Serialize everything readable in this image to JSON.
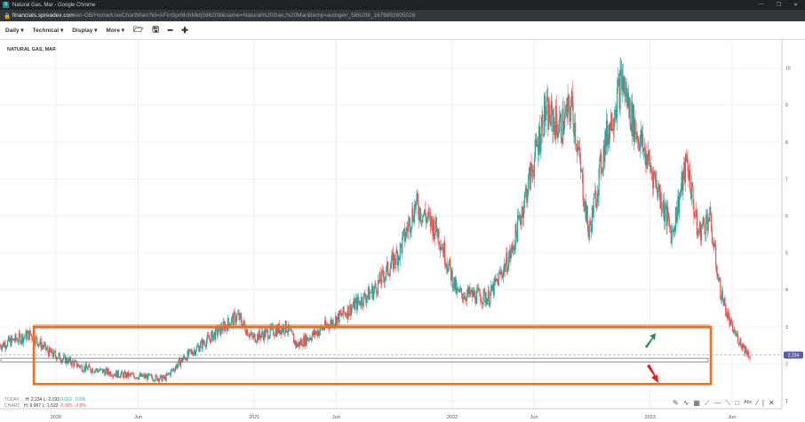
{
  "window": {
    "title": "Natural Gas, Mar - Google Chrome",
    "url_host": "financials.spreadex.com",
    "url_path": "/en-GB/Home/LiveChartMain?id=XFinSprMchMkt|586208&name=Natural%20Gas,%20Mar&temp=autogen_586208_1676882605028"
  },
  "toolbar": {
    "items": [
      "Daily",
      "Technical",
      "Display",
      "More"
    ],
    "icons": [
      "folder-open-icon",
      "save-icon",
      "zoom-out-icon",
      "zoom-in-icon"
    ]
  },
  "stats": {
    "today_label": "TODAY:",
    "today_h": "H: 2.234",
    "today_l": "L: 2.193",
    "today_chg": "0.012",
    "today_pct": "0.5%",
    "chart_label": "CHART:",
    "chart_h": "H: 9.967",
    "chart_l": "L: 1.522",
    "chart_chg": "-0.065",
    "chart_pct": "-2.8%"
  },
  "colors": {
    "up": "#26a69a",
    "down": "#ef5350",
    "highlight": "#ff6a13",
    "price_tag": "#5b5ea6"
  },
  "chart_data": {
    "type": "candlestick",
    "title": "NATURAL GAS, MAR",
    "ylim": [
      0.8,
      10.6
    ],
    "yticks": [
      1,
      2,
      3,
      4,
      5,
      6,
      7,
      8,
      9,
      10
    ],
    "xticks": [
      {
        "date": "2020-01",
        "label": "2020"
      },
      {
        "date": "2020-06",
        "label": "Jun"
      },
      {
        "date": "2021-01",
        "label": "2021"
      },
      {
        "date": "2021-06",
        "label": "Jun"
      },
      {
        "date": "2022-01",
        "label": "2022"
      },
      {
        "date": "2022-06",
        "label": "Jun"
      },
      {
        "date": "2023-01",
        "label": "2023"
      },
      {
        "date": "2023-06",
        "label": "Jun"
      }
    ],
    "xlim": [
      "2019-09-20",
      "2023-09-01"
    ],
    "current_price": "2.234",
    "close_path": [
      [
        "2019-09-20",
        2.5
      ],
      [
        "2019-11-15",
        2.8
      ],
      [
        "2019-12-20",
        2.3
      ],
      [
        "2020-02-20",
        1.9
      ],
      [
        "2020-05-01",
        1.7
      ],
      [
        "2020-07-20",
        1.6
      ],
      [
        "2020-08-20",
        2.1
      ],
      [
        "2020-10-20",
        2.8
      ],
      [
        "2020-12-01",
        3.3
      ],
      [
        "2020-12-28",
        2.7
      ],
      [
        "2021-03-01",
        3.0
      ],
      [
        "2021-03-20",
        2.5
      ],
      [
        "2021-05-01",
        2.9
      ],
      [
        "2021-06-10",
        3.3
      ],
      [
        "2021-08-10",
        4.0
      ],
      [
        "2021-09-25",
        5.0
      ],
      [
        "2021-10-25",
        6.3
      ],
      [
        "2021-12-05",
        5.6
      ],
      [
        "2022-01-10",
        3.9
      ],
      [
        "2022-03-10",
        3.8
      ],
      [
        "2022-04-20",
        5.0
      ],
      [
        "2022-06-01",
        7.5
      ],
      [
        "2022-06-20",
        8.8
      ],
      [
        "2022-07-20",
        8.4
      ],
      [
        "2022-08-10",
        9.0
      ],
      [
        "2022-09-10",
        5.5
      ],
      [
        "2022-10-10",
        8.0
      ],
      [
        "2022-11-10",
        9.7
      ],
      [
        "2022-12-01",
        8.5
      ],
      [
        "2023-01-10",
        7.0
      ],
      [
        "2023-02-10",
        5.5
      ],
      [
        "2023-03-10",
        7.5
      ],
      [
        "2023-03-30",
        5.5
      ],
      [
        "2023-04-20",
        6.0
      ],
      [
        "2023-05-10",
        4.0
      ],
      [
        "2023-05-30",
        3.0
      ],
      [
        "2023-06-20",
        2.5
      ],
      [
        "2023-07-05",
        2.2
      ]
    ],
    "annotations": {
      "highlight_box": [
        1.45,
        3.0
      ],
      "support_box": [
        2.05,
        2.15
      ],
      "resistance_line": 3.0
    }
  }
}
